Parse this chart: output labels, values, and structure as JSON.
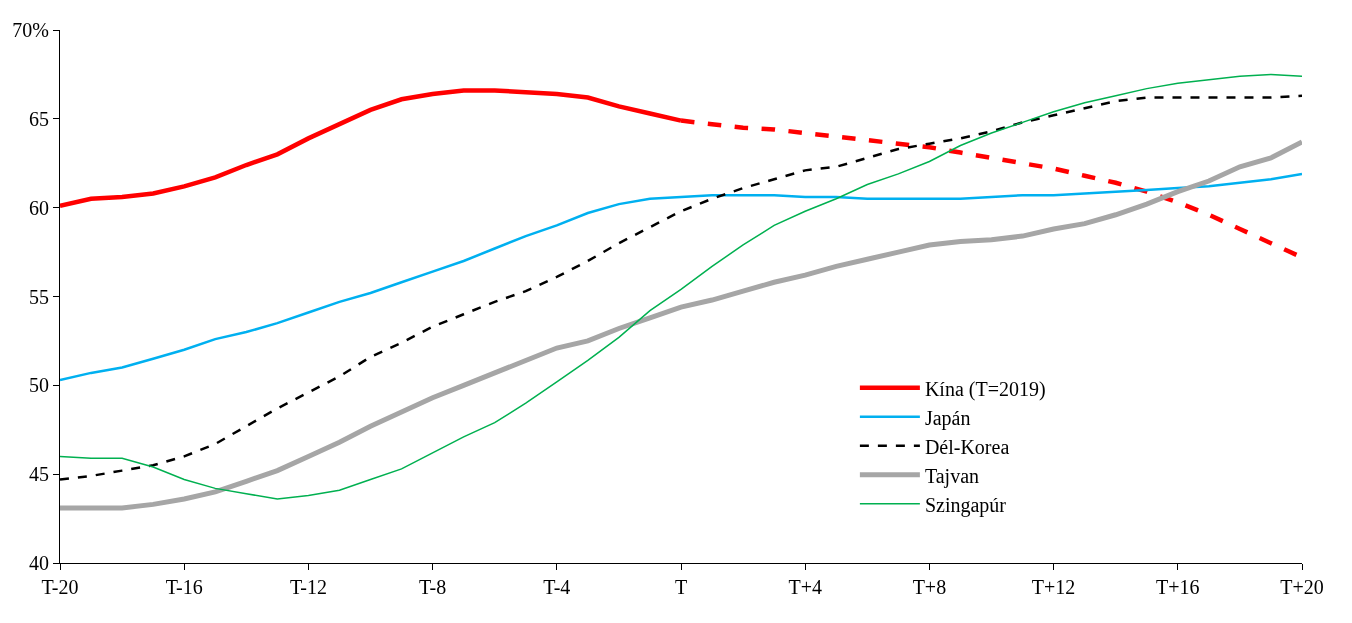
{
  "chart_data": {
    "type": "line",
    "categories": [
      "T-20",
      null,
      null,
      null,
      "T-16",
      null,
      null,
      null,
      "T-12",
      null,
      null,
      null,
      "T-8",
      null,
      null,
      null,
      "T-4",
      null,
      null,
      null,
      "T",
      null,
      null,
      null,
      "T+4",
      null,
      null,
      null,
      "T+8",
      null,
      null,
      null,
      "T+12",
      null,
      null,
      null,
      "T+16",
      null,
      null,
      null,
      "T+20"
    ],
    "series": [
      {
        "name": "Kína (T=2019)",
        "color": "#ff0000",
        "line_style": "solid",
        "values": [
          60.1,
          60.5,
          60.6,
          60.8,
          61.2,
          61.7,
          62.4,
          63.0,
          63.9,
          64.7,
          65.5,
          66.1,
          66.4,
          66.6,
          66.6,
          66.5,
          66.4,
          66.2,
          65.7,
          65.3,
          64.9,
          null,
          null,
          null,
          null,
          null,
          null,
          null,
          null,
          null,
          null,
          null,
          null,
          null,
          null,
          null,
          null,
          null,
          null,
          null,
          null
        ]
      },
      {
        "color": "#ff0000",
        "line_style": "dashed",
        "values": [
          null,
          null,
          null,
          null,
          null,
          null,
          null,
          null,
          null,
          null,
          null,
          null,
          null,
          null,
          null,
          null,
          null,
          null,
          null,
          null,
          64.9,
          64.7,
          64.5,
          64.4,
          64.2,
          64.0,
          63.8,
          63.6,
          63.4,
          63.1,
          62.8,
          62.5,
          62.2,
          61.8,
          61.4,
          60.9,
          60.3,
          59.6,
          58.8,
          58.0,
          57.2
        ]
      },
      {
        "name": "Japán",
        "color": "#00b0f0",
        "line_style": "solid",
        "values": [
          50.3,
          50.7,
          51.0,
          51.5,
          52.0,
          52.6,
          53.0,
          53.5,
          54.1,
          54.7,
          55.2,
          55.8,
          56.4,
          57.0,
          57.7,
          58.4,
          59.0,
          59.7,
          60.2,
          60.5,
          60.6,
          60.7,
          60.7,
          60.7,
          60.6,
          60.6,
          60.5,
          60.5,
          60.5,
          60.5,
          60.6,
          60.7,
          60.7,
          60.8,
          60.9,
          61.0,
          61.1,
          61.2,
          61.4,
          61.6,
          61.9
        ]
      },
      {
        "name": "Dél-Korea",
        "color": "#000000",
        "line_style": "dashed",
        "values": [
          44.7,
          44.9,
          45.2,
          45.5,
          46.0,
          46.7,
          47.7,
          48.7,
          49.6,
          50.5,
          51.6,
          52.4,
          53.3,
          54.0,
          54.7,
          55.3,
          56.1,
          57.0,
          58.0,
          58.9,
          59.8,
          60.5,
          61.1,
          61.6,
          62.1,
          62.3,
          62.8,
          63.3,
          63.6,
          63.9,
          64.3,
          64.8,
          65.2,
          65.6,
          66.0,
          66.2,
          66.2,
          66.2,
          66.2,
          66.2,
          66.3
        ]
      },
      {
        "name": "Tajvan",
        "color": "#a6a6a6",
        "line_style": "solid",
        "values": [
          43.1,
          43.1,
          43.1,
          43.3,
          43.6,
          44.0,
          44.6,
          45.2,
          46.0,
          46.8,
          47.7,
          48.5,
          49.3,
          50.0,
          50.7,
          51.4,
          52.1,
          52.5,
          53.2,
          53.8,
          54.4,
          54.8,
          55.3,
          55.8,
          56.2,
          56.7,
          57.1,
          57.5,
          57.9,
          58.1,
          58.2,
          58.4,
          58.8,
          59.1,
          59.6,
          60.2,
          60.9,
          61.5,
          62.3,
          62.8,
          63.7
        ]
      },
      {
        "name": "Szingapúr",
        "color": "#00b050",
        "line_style": "solid",
        "values": [
          46.0,
          45.9,
          45.9,
          45.4,
          44.7,
          44.2,
          43.9,
          43.6,
          43.8,
          44.1,
          44.7,
          45.3,
          46.2,
          47.1,
          47.9,
          49.0,
          50.2,
          51.4,
          52.7,
          54.2,
          55.4,
          56.7,
          57.9,
          59.0,
          59.8,
          60.5,
          61.3,
          61.9,
          62.6,
          63.5,
          64.2,
          64.8,
          65.4,
          65.9,
          66.3,
          66.7,
          67.0,
          67.2,
          67.4,
          67.5,
          67.4
        ]
      }
    ],
    "ylim": [
      40,
      70
    ],
    "yticks": [
      40,
      45,
      50,
      55,
      60,
      65,
      {
        "value": 70,
        "label": "70%"
      }
    ],
    "legend": "right",
    "marker": "none"
  }
}
